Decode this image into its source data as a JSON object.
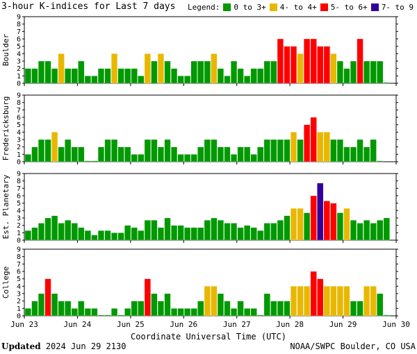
{
  "title": "3-hour K-indices for Last 7 days",
  "legend": {
    "label": "Legend:",
    "items": [
      {
        "label": "0 to 3+",
        "color": "#009900"
      },
      {
        "label": "4- to 4+",
        "color": "#e8b800"
      },
      {
        "label": "5- to 6+",
        "color": "#ff0000"
      },
      {
        "label": "7- to 9",
        "color": "#330099"
      }
    ]
  },
  "chart_data": {
    "type": "bar",
    "x_tick_labels": [
      "Jun 23",
      "Jun 24",
      "Jun 25",
      "Jun 26",
      "Jun 27",
      "Jun 28",
      "Jun 29",
      "Jun 30"
    ],
    "xlabel": "Coordinate Universal Time (UTC)",
    "y_ticks": [
      0,
      1,
      2,
      3,
      4,
      5,
      6,
      7,
      8,
      9
    ],
    "ylim": [
      0,
      9
    ],
    "panels": [
      {
        "name": "Boulder",
        "values": [
          2,
          2,
          3,
          3,
          2,
          4,
          2,
          2,
          3,
          1,
          1,
          2,
          2,
          4,
          2,
          2,
          2,
          1,
          4,
          3,
          4,
          3,
          2,
          1,
          1,
          3,
          3,
          3,
          4,
          2,
          1,
          3,
          2,
          1,
          2,
          2,
          3,
          3,
          6,
          5,
          5,
          4,
          6,
          6,
          5,
          5,
          4,
          3,
          2,
          3,
          6,
          3,
          3,
          3,
          0
        ]
      },
      {
        "name": "Fredericksburg",
        "values": [
          1,
          2,
          3,
          3,
          4,
          2,
          3,
          2,
          2,
          0,
          0,
          2,
          3,
          3,
          2,
          2,
          1,
          1,
          3,
          3,
          2,
          3,
          2,
          1,
          1,
          1,
          2,
          3,
          3,
          2,
          2,
          1,
          2,
          2,
          1,
          2,
          3,
          3,
          3,
          3,
          4,
          3,
          5,
          6,
          4,
          4,
          3,
          3,
          2,
          2,
          3,
          2,
          3,
          0
        ]
      },
      {
        "name": "Est. Planetary",
        "values": [
          1.3,
          1.7,
          2.3,
          3,
          3.3,
          2.3,
          2.7,
          2.3,
          1.7,
          1.3,
          0.7,
          1.3,
          1.3,
          1,
          1,
          2,
          1.7,
          1.3,
          2.7,
          2.7,
          1.7,
          3,
          2,
          2,
          1.7,
          1.7,
          1.7,
          2.7,
          3,
          2.7,
          2.3,
          2.3,
          1.7,
          2,
          1.7,
          1.3,
          2.3,
          2.3,
          2.7,
          3.3,
          4.3,
          4.3,
          3.7,
          6,
          7.7,
          5.3,
          5,
          3.7,
          4.3,
          2.7,
          2.3,
          2.7,
          2.3,
          2.7,
          3
        ]
      },
      {
        "name": "College",
        "values": [
          1,
          2,
          3,
          5,
          3,
          2,
          2,
          1,
          2,
          1,
          1,
          0,
          0,
          1,
          0,
          1,
          2,
          2,
          5,
          3,
          2,
          3,
          1,
          1,
          1,
          1,
          2,
          4,
          4,
          3,
          2,
          1,
          2,
          1,
          1,
          0,
          3,
          2,
          2,
          2,
          4,
          4,
          4,
          6,
          5,
          4,
          4,
          4,
          4,
          2,
          2,
          4,
          4,
          3,
          0
        ]
      }
    ],
    "grid": false
  },
  "footer": {
    "updated_label": "Updated",
    "updated_value": "2024 Jun 29 2130",
    "source": "NOAA/SWPC Boulder, CO USA"
  }
}
